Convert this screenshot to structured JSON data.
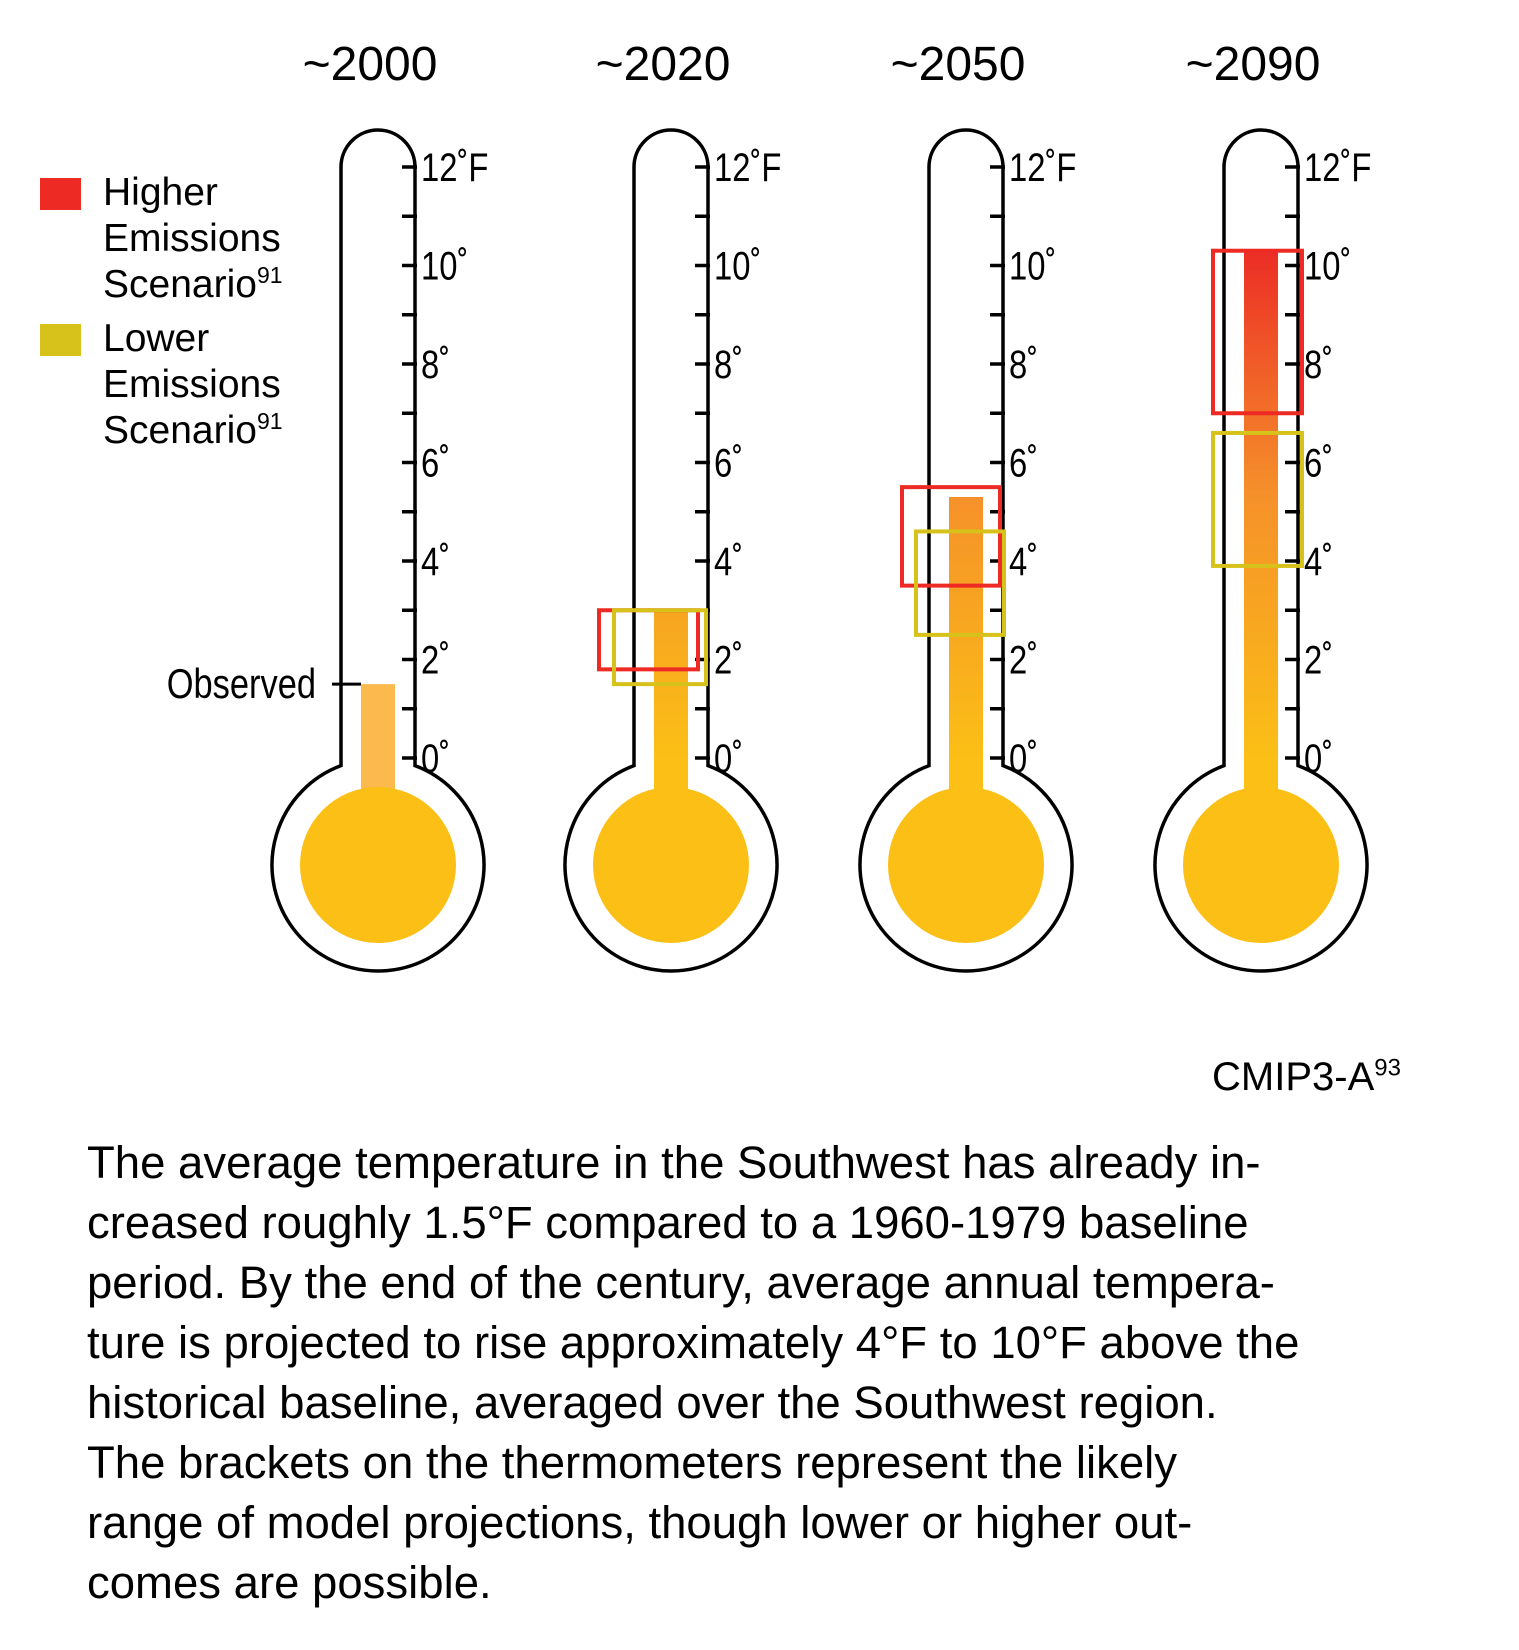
{
  "chart_data": {
    "type": "thermometer",
    "unit": "°F",
    "scale": {
      "min": 0,
      "max": 12,
      "tick_step": 1,
      "label_step": 2,
      "tick_labels": [
        "0˚",
        "2˚",
        "4˚",
        "6˚",
        "8˚",
        "10˚",
        "12˚F"
      ]
    },
    "periods": [
      {
        "label": "~2000",
        "fill_top": 1.5,
        "observed": 1.5,
        "observed_label": "Observed",
        "brackets": []
      },
      {
        "label": "~2020",
        "fill_top": 3.0,
        "brackets": [
          {
            "scenario": "higher",
            "low": 1.8,
            "high": 3.0
          },
          {
            "scenario": "lower",
            "low": 1.5,
            "high": 3.0
          }
        ]
      },
      {
        "label": "~2050",
        "fill_top": 5.3,
        "brackets": [
          {
            "scenario": "higher",
            "low": 3.5,
            "high": 5.5
          },
          {
            "scenario": "lower",
            "low": 2.5,
            "high": 4.6
          }
        ]
      },
      {
        "label": "~2090",
        "fill_top": 10.3,
        "brackets": [
          {
            "scenario": "higher",
            "low": 7.0,
            "high": 10.3
          },
          {
            "scenario": "lower",
            "low": 3.9,
            "high": 6.6
          }
        ]
      }
    ],
    "legend": [
      {
        "key": "higher",
        "lines": [
          "Higher",
          "Emissions",
          "Scenario"
        ],
        "sup": "91",
        "color": "#ee2a24"
      },
      {
        "key": "lower",
        "lines": [
          "Lower",
          "Emissions",
          "Scenario"
        ],
        "sup": "91",
        "color": "#d6c21a"
      }
    ],
    "colors": {
      "bulb": "#fbbf16",
      "fill_bottom": "#fbbf16",
      "fill_mid": "#f5902a",
      "fill_top": "#ec2f26",
      "observed_fill": "#fbb94e",
      "outline": "#000000"
    }
  },
  "source": {
    "text": "CMIP3-A",
    "sup": "93"
  },
  "caption": {
    "lines": [
      "The average temperature in the Southwest has already in-",
      "creased roughly 1.5°F compared to a 1960-1979 baseline",
      "period. By the end of the century, average annual tempera-",
      "ture is projected to rise approximately 4°F to 10°F above the",
      "historical baseline, averaged over the Southwest region.",
      "The brackets on the thermometers represent the likely",
      "range of model projections, though lower or higher out-",
      "comes are possible."
    ]
  }
}
